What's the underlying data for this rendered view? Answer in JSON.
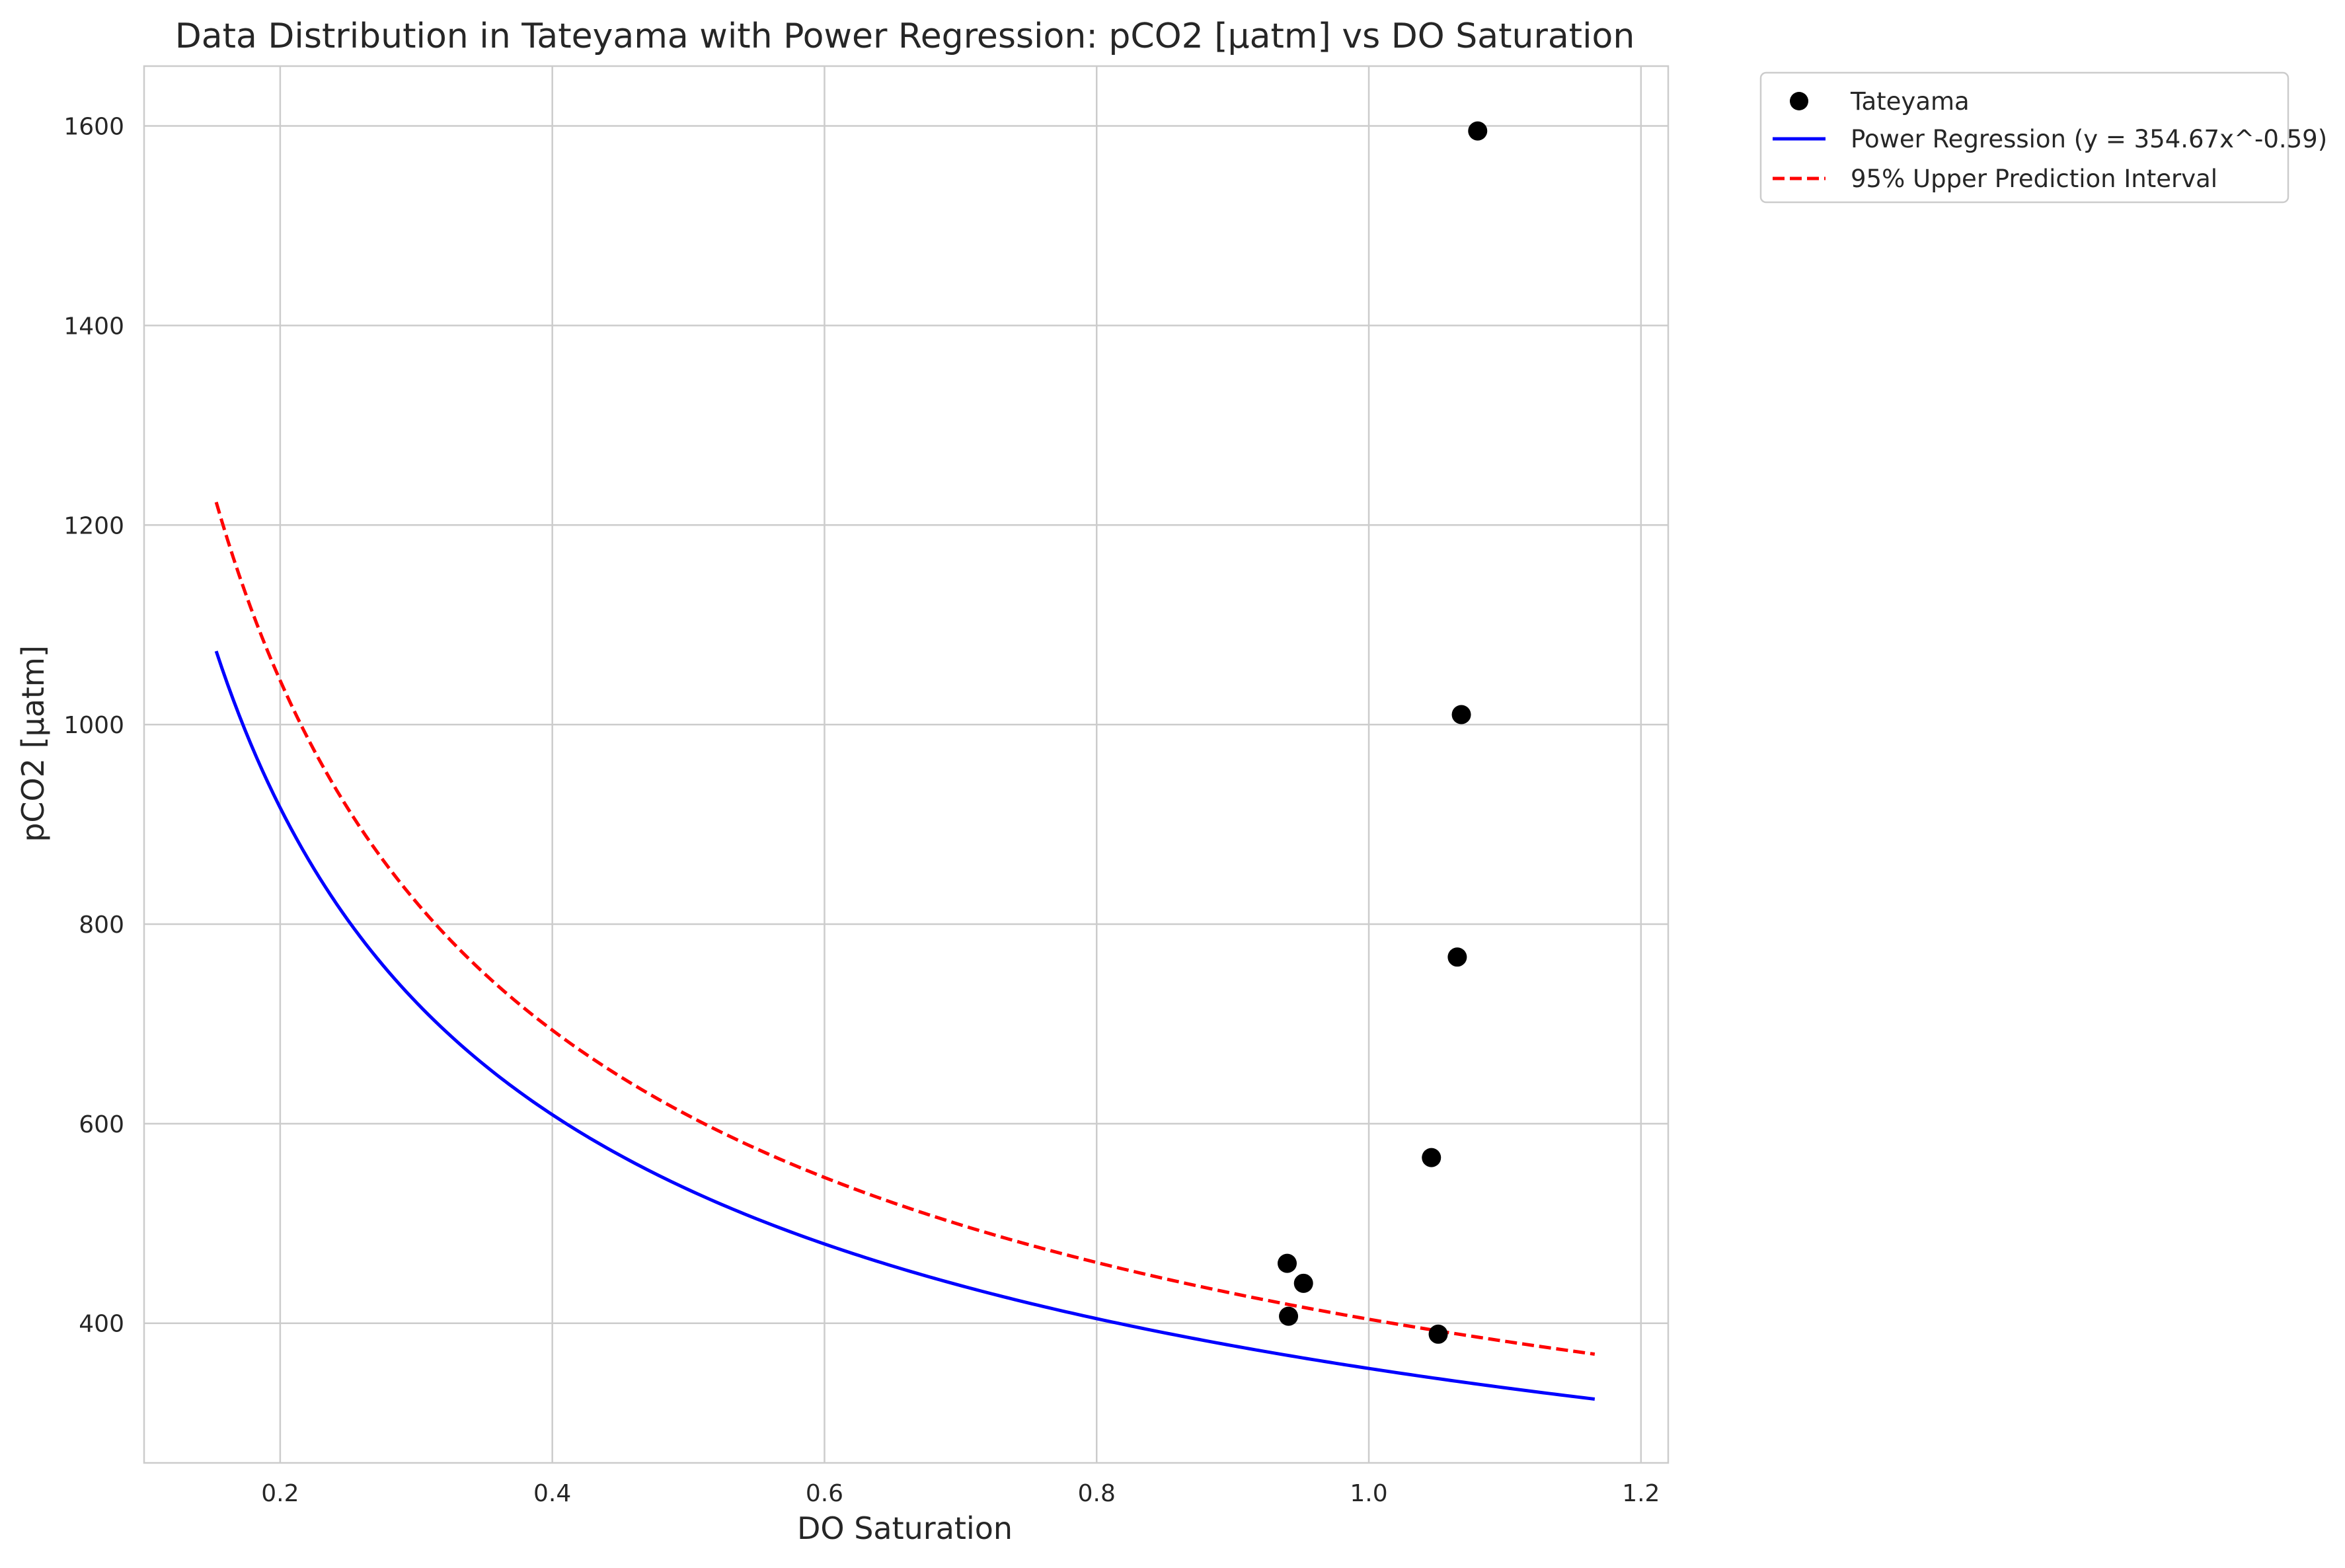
{
  "chart_data": {
    "type": "scatter",
    "title": "Data Distribution in Tateyama with Power Regression: pCO2 [µatm] vs DO Saturation",
    "xlabel": "DO Saturation",
    "ylabel": "pCO2 [µatm]",
    "xlim": [
      0.1,
      1.22
    ],
    "ylim": [
      260,
      1660
    ],
    "x_ticks": [
      0.2,
      0.4,
      0.6,
      0.8,
      1.0,
      1.2
    ],
    "x_tick_labels": [
      "0.2",
      "0.4",
      "0.6",
      "0.8",
      "1.0",
      "1.2"
    ],
    "y_ticks": [
      400,
      600,
      800,
      1000,
      1200,
      1400,
      1600
    ],
    "y_tick_labels": [
      "400",
      "600",
      "800",
      "1000",
      "1200",
      "1400",
      "1600"
    ],
    "grid": true,
    "legend_position": "outside-top-right",
    "series": [
      {
        "name": "Tateyama",
        "kind": "scatter",
        "color": "#000000",
        "points": [
          {
            "x": 1.08,
            "y": 1595
          },
          {
            "x": 1.068,
            "y": 1010
          },
          {
            "x": 1.065,
            "y": 767
          },
          {
            "x": 1.046,
            "y": 566
          },
          {
            "x": 0.94,
            "y": 460
          },
          {
            "x": 0.952,
            "y": 440
          },
          {
            "x": 0.941,
            "y": 407
          },
          {
            "x": 1.051,
            "y": 389
          }
        ]
      },
      {
        "name": "Power Regression (y = 354.67x^-0.59)",
        "kind": "line",
        "style": "solid",
        "color": "#0000ff",
        "model": {
          "a": 354.67,
          "b": -0.59
        },
        "x_range": [
          0.153,
          1.166
        ]
      },
      {
        "name": "95% Upper Prediction Interval",
        "kind": "line",
        "style": "dashed",
        "color": "#ff0000",
        "model": {
          "a": 404,
          "b": -0.59
        },
        "x_range": [
          0.153,
          1.166
        ]
      }
    ]
  }
}
